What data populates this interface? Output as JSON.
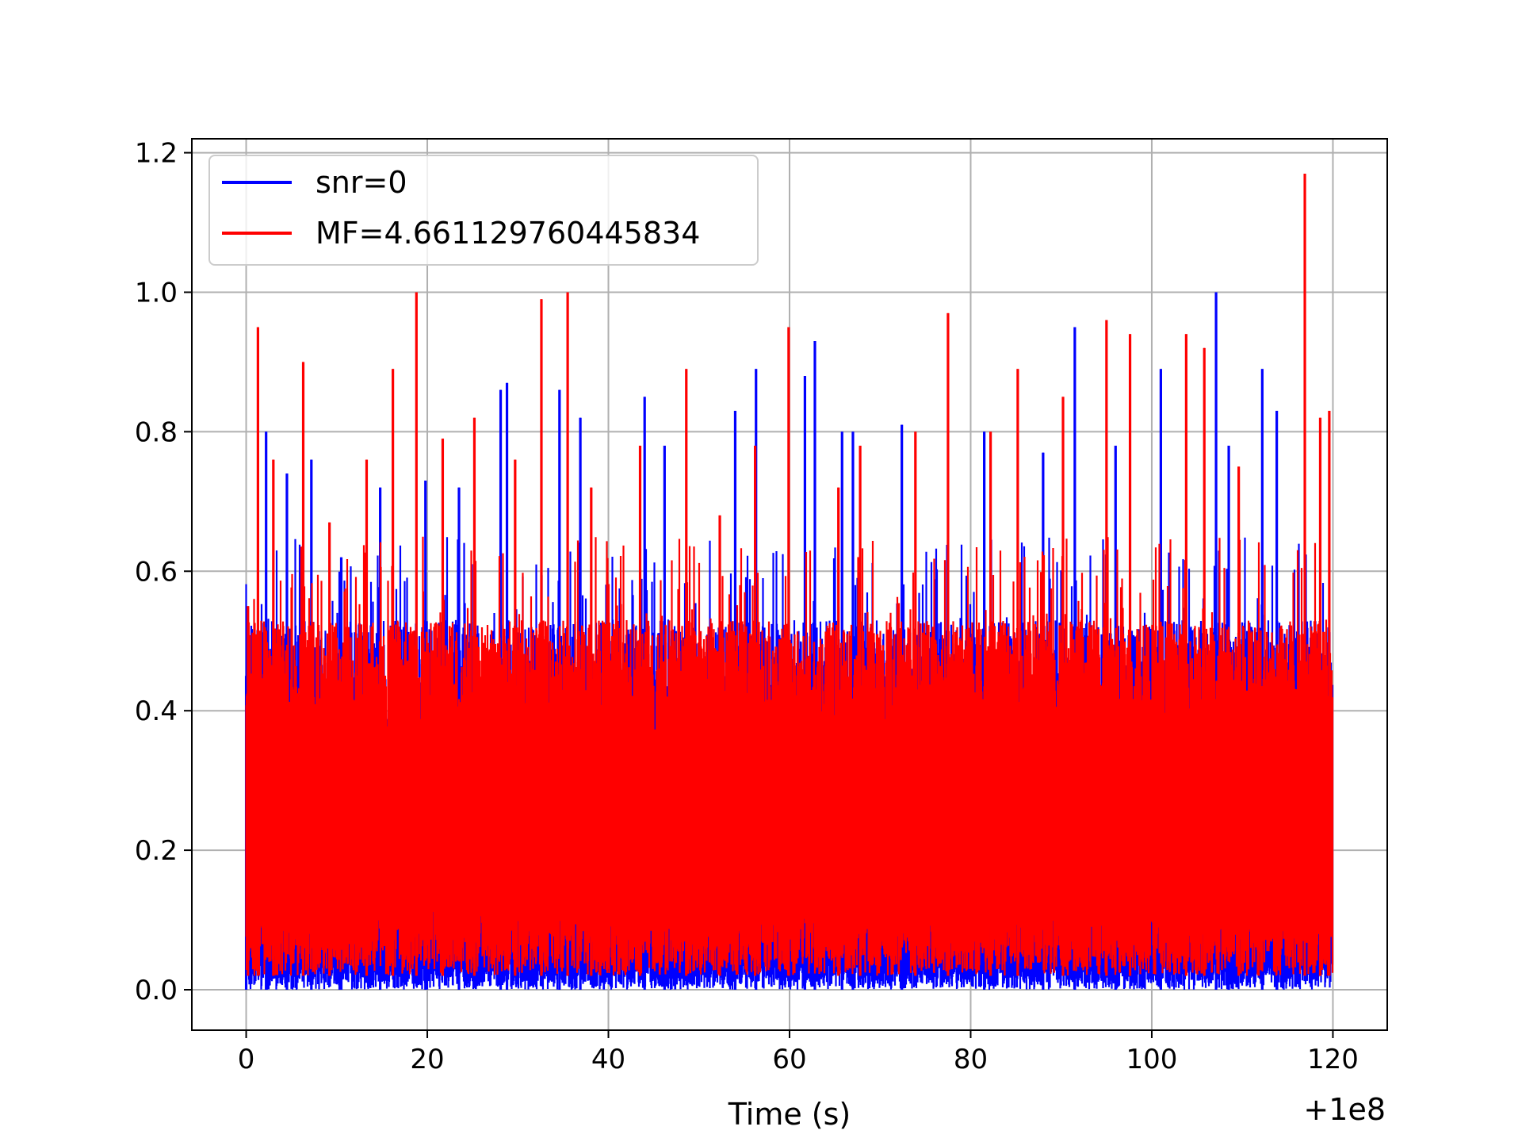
{
  "chart_data": {
    "type": "line",
    "title": "",
    "xlabel": "Time (s)",
    "ylabel": "",
    "x_offset_label": "+1e8",
    "xlim": [
      -6,
      126
    ],
    "ylim": [
      -0.058,
      1.22
    ],
    "xticks": [
      0,
      20,
      40,
      60,
      80,
      100,
      120
    ],
    "xtick_labels": [
      "0",
      "20",
      "40",
      "60",
      "80",
      "100",
      "120"
    ],
    "yticks": [
      0.0,
      0.2,
      0.4,
      0.6,
      0.8,
      1.0,
      1.2
    ],
    "ytick_labels": [
      "0.0",
      "0.2",
      "0.4",
      "0.6",
      "0.8",
      "1.0",
      "1.2"
    ],
    "grid": true,
    "legend_position": "upper-left",
    "x_range": [
      0,
      120
    ],
    "series": [
      {
        "name": "snr=0",
        "color": "#0000ff",
        "baseline_band": [
          0.0,
          0.05
        ],
        "peaks": [
          {
            "x": 0.0,
            "y": 0.45
          },
          {
            "x": 2.2,
            "y": 0.8
          },
          {
            "x": 4.5,
            "y": 0.74
          },
          {
            "x": 7.2,
            "y": 0.76
          },
          {
            "x": 10.5,
            "y": 0.62
          },
          {
            "x": 14.8,
            "y": 0.72
          },
          {
            "x": 19.8,
            "y": 0.73
          },
          {
            "x": 23.5,
            "y": 0.72
          },
          {
            "x": 28.1,
            "y": 0.86
          },
          {
            "x": 28.8,
            "y": 0.87
          },
          {
            "x": 34.6,
            "y": 0.86
          },
          {
            "x": 36.9,
            "y": 0.82
          },
          {
            "x": 44.0,
            "y": 0.85
          },
          {
            "x": 46.2,
            "y": 0.78
          },
          {
            "x": 54.0,
            "y": 0.83
          },
          {
            "x": 56.3,
            "y": 0.89
          },
          {
            "x": 61.7,
            "y": 0.88
          },
          {
            "x": 62.8,
            "y": 0.93
          },
          {
            "x": 65.8,
            "y": 0.8
          },
          {
            "x": 67.0,
            "y": 0.8
          },
          {
            "x": 72.4,
            "y": 0.81
          },
          {
            "x": 81.5,
            "y": 0.8
          },
          {
            "x": 88.0,
            "y": 0.77
          },
          {
            "x": 91.5,
            "y": 0.95
          },
          {
            "x": 96.0,
            "y": 0.78
          },
          {
            "x": 101.0,
            "y": 0.89
          },
          {
            "x": 107.1,
            "y": 1.0
          },
          {
            "x": 108.5,
            "y": 0.78
          },
          {
            "x": 112.2,
            "y": 0.89
          },
          {
            "x": 113.8,
            "y": 0.83
          }
        ]
      },
      {
        "name": "MF=4.661129760445834",
        "color": "#ff0000",
        "baseline_band": [
          0.02,
          0.12
        ],
        "peaks": [
          {
            "x": 0.2,
            "y": 0.55
          },
          {
            "x": 1.3,
            "y": 0.95
          },
          {
            "x": 3.0,
            "y": 0.76
          },
          {
            "x": 6.3,
            "y": 0.9
          },
          {
            "x": 9.2,
            "y": 0.67
          },
          {
            "x": 13.3,
            "y": 0.76
          },
          {
            "x": 16.2,
            "y": 0.89
          },
          {
            "x": 18.8,
            "y": 1.0
          },
          {
            "x": 21.7,
            "y": 0.79
          },
          {
            "x": 25.2,
            "y": 0.82
          },
          {
            "x": 29.7,
            "y": 0.76
          },
          {
            "x": 32.6,
            "y": 0.99
          },
          {
            "x": 35.5,
            "y": 1.0
          },
          {
            "x": 38.1,
            "y": 0.72
          },
          {
            "x": 43.5,
            "y": 0.78
          },
          {
            "x": 48.6,
            "y": 0.89
          },
          {
            "x": 52.3,
            "y": 0.68
          },
          {
            "x": 56.2,
            "y": 0.78
          },
          {
            "x": 59.9,
            "y": 0.95
          },
          {
            "x": 65.4,
            "y": 0.72
          },
          {
            "x": 67.8,
            "y": 0.78
          },
          {
            "x": 73.9,
            "y": 0.8
          },
          {
            "x": 77.5,
            "y": 0.97
          },
          {
            "x": 82.2,
            "y": 0.8
          },
          {
            "x": 85.2,
            "y": 0.89
          },
          {
            "x": 90.2,
            "y": 0.85
          },
          {
            "x": 95.0,
            "y": 0.96
          },
          {
            "x": 97.6,
            "y": 0.94
          },
          {
            "x": 103.8,
            "y": 0.94
          },
          {
            "x": 105.8,
            "y": 0.92
          },
          {
            "x": 109.6,
            "y": 0.75
          },
          {
            "x": 116.9,
            "y": 1.17
          },
          {
            "x": 118.6,
            "y": 0.82
          },
          {
            "x": 119.6,
            "y": 0.83
          }
        ]
      }
    ]
  }
}
